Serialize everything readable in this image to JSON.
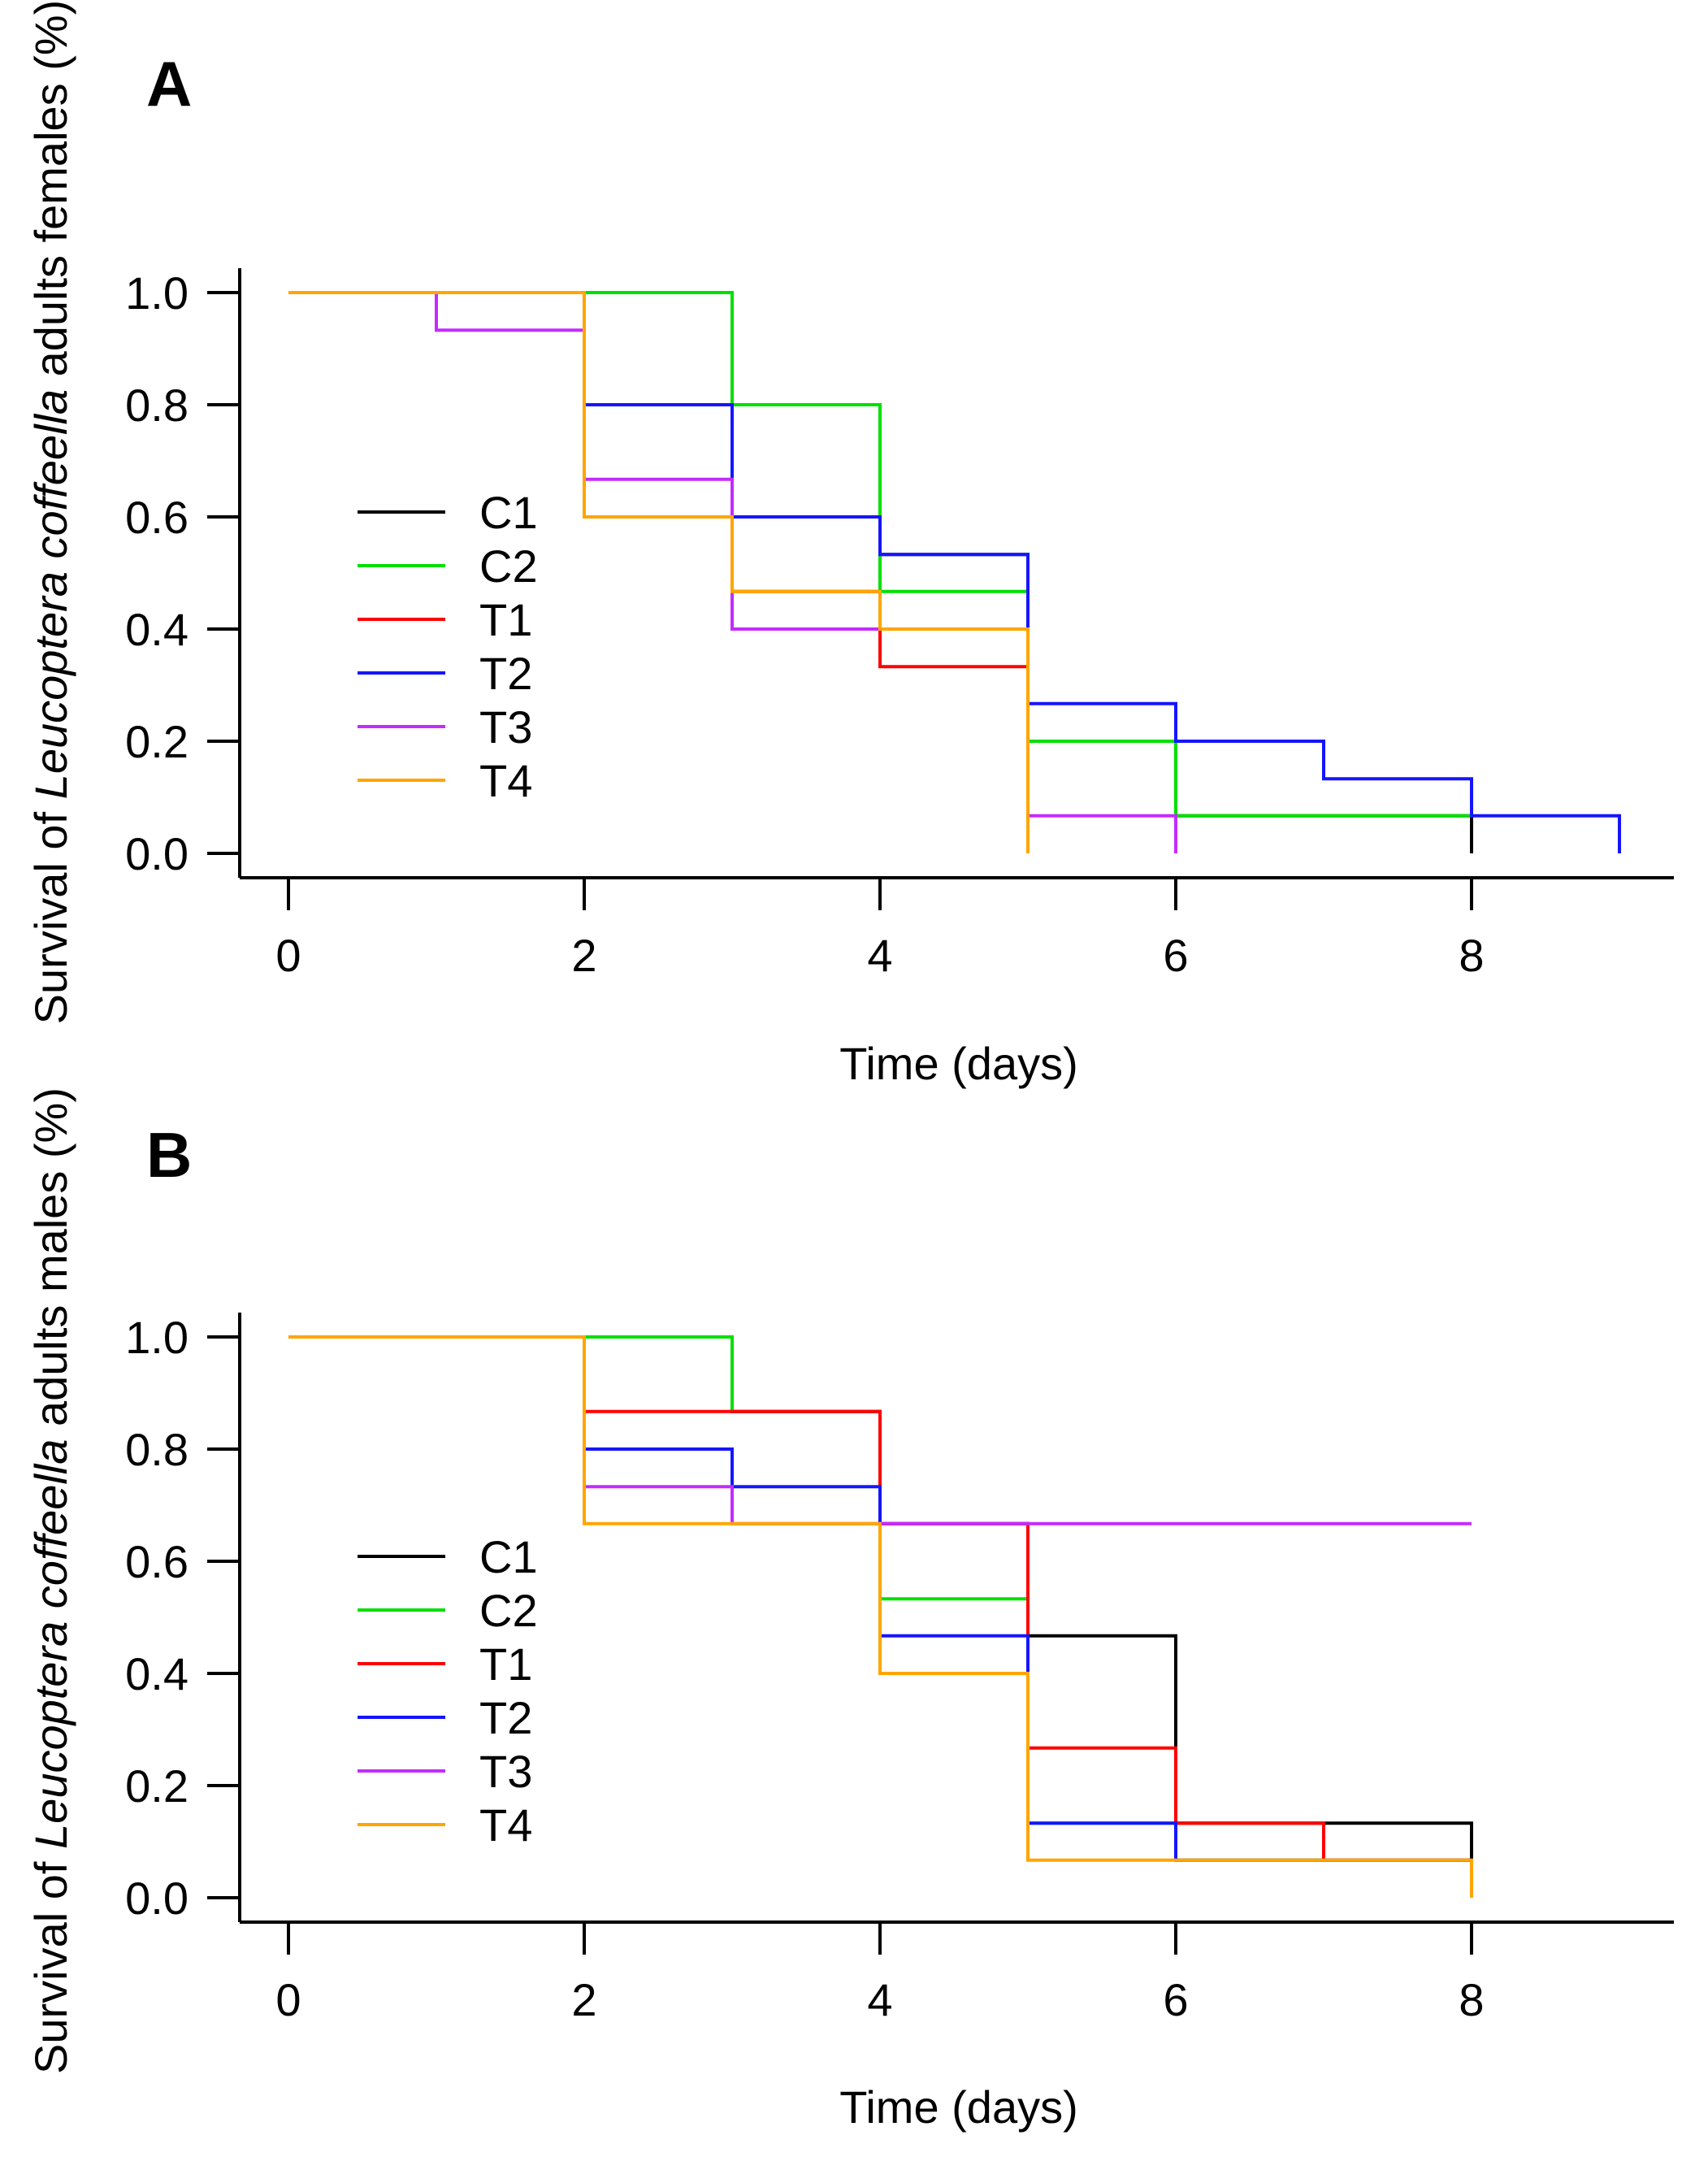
{
  "chart_data": [
    {
      "type": "line",
      "step": true,
      "panel_label": "A",
      "title": "",
      "xlabel": "Time (days)",
      "ylabel": {
        "prefix": "Survival of ",
        "italic": "Leucoptera coffeella",
        "suffix": " adults females (%)"
      },
      "xlim": [
        0,
        9
      ],
      "ylim": [
        0,
        1
      ],
      "xticks": [
        0,
        2,
        4,
        6,
        8
      ],
      "xtick_labels": [
        "0",
        "2",
        "4",
        "6",
        "8"
      ],
      "yticks": [
        0,
        0.2,
        0.4,
        0.6,
        0.8,
        1.0
      ],
      "ytick_labels": [
        "0.0",
        "0.2",
        "0.4",
        "0.6",
        "0.8",
        "1.0"
      ],
      "legend_position": "left",
      "series": [
        {
          "name": "C1",
          "color": "#000000",
          "x": [
            0,
            2,
            3,
            4,
            5,
            6,
            8,
            8
          ],
          "y": [
            1.0,
            0.8,
            0.6,
            0.533,
            0.2,
            0.067,
            0.067,
            0.0
          ]
        },
        {
          "name": "C2",
          "color": "#00e000",
          "x": [
            0,
            3,
            4,
            5,
            6,
            8
          ],
          "y": [
            1.0,
            0.8,
            0.467,
            0.2,
            0.067,
            0.067
          ]
        },
        {
          "name": "T1",
          "color": "#ff0000",
          "x": [
            0,
            2,
            3,
            4,
            5
          ],
          "y": [
            1.0,
            0.6,
            0.467,
            0.333,
            0.0
          ]
        },
        {
          "name": "T2",
          "color": "#1515ff",
          "x": [
            0,
            2,
            3,
            4,
            5,
            6,
            7,
            8,
            9
          ],
          "y": [
            1.0,
            0.8,
            0.6,
            0.533,
            0.267,
            0.2,
            0.133,
            0.067,
            0.0
          ]
        },
        {
          "name": "T3",
          "color": "#c42bff",
          "x": [
            0,
            1,
            2,
            3,
            4,
            5,
            6
          ],
          "y": [
            1.0,
            0.933,
            0.667,
            0.4,
            0.4,
            0.067,
            0.0
          ]
        },
        {
          "name": "T4",
          "color": "#ffa500",
          "x": [
            0,
            2,
            3,
            4,
            5
          ],
          "y": [
            1.0,
            0.6,
            0.467,
            0.4,
            0.0
          ]
        }
      ]
    },
    {
      "type": "line",
      "step": true,
      "panel_label": "B",
      "title": "",
      "xlabel": "Time (days)",
      "ylabel": {
        "prefix": "Survival of ",
        "italic": "Leucoptera coffeella",
        "suffix": " adults males (%)"
      },
      "xlim": [
        0,
        9
      ],
      "ylim": [
        0,
        1
      ],
      "xticks": [
        0,
        2,
        4,
        6,
        8
      ],
      "xtick_labels": [
        "0",
        "2",
        "4",
        "6",
        "8"
      ],
      "yticks": [
        0,
        0.2,
        0.4,
        0.6,
        0.8,
        1.0
      ],
      "ytick_labels": [
        "0.0",
        "0.2",
        "0.4",
        "0.6",
        "0.8",
        "1.0"
      ],
      "legend_position": "left",
      "series": [
        {
          "name": "C1",
          "color": "#000000",
          "x": [
            0,
            3,
            4,
            5,
            6,
            8
          ],
          "y": [
            1.0,
            0.867,
            0.667,
            0.467,
            0.133,
            0.067
          ]
        },
        {
          "name": "C2",
          "color": "#00e000",
          "x": [
            0,
            3,
            4,
            5,
            6,
            8
          ],
          "y": [
            1.0,
            0.867,
            0.533,
            0.133,
            0.067,
            0.067
          ]
        },
        {
          "name": "T1",
          "color": "#ff0000",
          "x": [
            0,
            2,
            4,
            5,
            6,
            7,
            8
          ],
          "y": [
            1.0,
            0.867,
            0.667,
            0.267,
            0.133,
            0.067,
            0.067
          ]
        },
        {
          "name": "T2",
          "color": "#1515ff",
          "x": [
            0,
            2,
            3,
            4,
            5,
            6,
            8
          ],
          "y": [
            1.0,
            0.8,
            0.733,
            0.467,
            0.133,
            0.067,
            0.067
          ]
        },
        {
          "name": "T3",
          "color": "#c42bff",
          "x": [
            0,
            2,
            3,
            8
          ],
          "y": [
            1.0,
            0.733,
            0.667,
            0.667
          ]
        },
        {
          "name": "T4",
          "color": "#ffa500",
          "x": [
            0,
            2,
            4,
            5,
            8,
            8
          ],
          "y": [
            1.0,
            0.667,
            0.4,
            0.067,
            0.067,
            0.0
          ]
        }
      ]
    }
  ]
}
